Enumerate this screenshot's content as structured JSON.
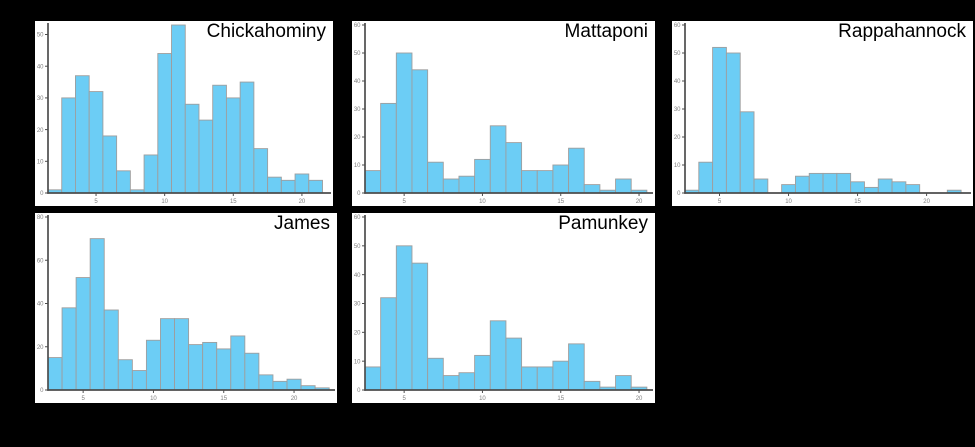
{
  "figure": {
    "background_color": "#000000",
    "panel_color": "#ffffff",
    "bar_fill": "#6CCDF5",
    "bar_stroke": "#9E9E9E",
    "axis_color": "#4D4D4D",
    "tick_label_color": "#808080",
    "title_color": "#000000"
  },
  "chart_data": [
    {
      "type": "bar",
      "subtype": "histogram",
      "title": "Chickahominy",
      "xlabel": "",
      "ylabel": "",
      "bin_width": 1,
      "x_start": 2,
      "ages": [
        2,
        3,
        4,
        5,
        6,
        7,
        8,
        9,
        10,
        11,
        12,
        13,
        14,
        15,
        16,
        17,
        18,
        19,
        20,
        21
      ],
      "values": [
        1,
        30,
        37,
        32,
        18,
        7,
        1,
        12,
        44,
        53,
        28,
        23,
        34,
        30,
        35,
        14,
        5,
        4,
        6,
        4
      ],
      "x_ticks": [
        5,
        10,
        15,
        20
      ],
      "y_ticks": [
        0,
        10,
        20,
        30,
        40,
        50
      ],
      "xlim": [
        1.5,
        21.9
      ],
      "ylim": [
        0,
        53
      ],
      "grid": false,
      "legend": null
    },
    {
      "type": "bar",
      "subtype": "histogram",
      "title": "Mattaponi",
      "xlabel": "",
      "ylabel": "",
      "bin_width": 1,
      "x_start": 3,
      "ages": [
        3,
        4,
        5,
        6,
        7,
        8,
        9,
        10,
        11,
        12,
        13,
        14,
        15,
        16,
        17,
        18,
        19,
        20
      ],
      "values": [
        8,
        32,
        50,
        44,
        11,
        5,
        6,
        12,
        24,
        18,
        8,
        8,
        10,
        16,
        3,
        1,
        5,
        1
      ],
      "x_ticks": [
        5,
        10,
        15,
        20
      ],
      "y_ticks": [
        0,
        10,
        20,
        30,
        40,
        50,
        60
      ],
      "xlim": [
        2.5,
        20.7
      ],
      "ylim": [
        0,
        60
      ],
      "grid": false,
      "legend": null
    },
    {
      "type": "bar",
      "subtype": "histogram",
      "title": "Rappahannock",
      "xlabel": "",
      "ylabel": "",
      "bin_width": 1,
      "x_start": 3,
      "ages": [
        3,
        4,
        5,
        6,
        7,
        8,
        9,
        10,
        11,
        12,
        13,
        14,
        15,
        16,
        17,
        18,
        19,
        20,
        21,
        22
      ],
      "values": [
        1,
        11,
        52,
        50,
        29,
        5,
        0,
        3,
        6,
        7,
        7,
        7,
        4,
        2,
        5,
        4,
        3,
        0,
        0,
        1
      ],
      "x_ticks": [
        5,
        10,
        15,
        20
      ],
      "y_ticks": [
        0,
        10,
        20,
        30,
        40,
        50,
        60
      ],
      "xlim": [
        2.5,
        23.0
      ],
      "ylim": [
        0,
        60
      ],
      "grid": false,
      "legend": null
    },
    {
      "type": "bar",
      "subtype": "histogram",
      "title": "James",
      "xlabel": "",
      "ylabel": "",
      "bin_width": 1,
      "x_start": 3,
      "ages": [
        3,
        4,
        5,
        6,
        7,
        8,
        9,
        10,
        11,
        12,
        13,
        14,
        15,
        16,
        17,
        18,
        19,
        20,
        21,
        22
      ],
      "values": [
        15,
        38,
        52,
        70,
        37,
        14,
        9,
        23,
        33,
        33,
        21,
        22,
        19,
        25,
        17,
        7,
        4,
        5,
        2,
        1
      ],
      "x_ticks": [
        5,
        10,
        15,
        20
      ],
      "y_ticks": [
        0,
        20,
        40,
        60,
        80
      ],
      "xlim": [
        2.5,
        22.7
      ],
      "ylim": [
        0,
        80
      ],
      "grid": false,
      "legend": null
    },
    {
      "type": "bar",
      "subtype": "histogram",
      "title": "Pamunkey",
      "xlabel": "",
      "ylabel": "",
      "bin_width": 1,
      "x_start": 3,
      "ages": [
        3,
        4,
        5,
        6,
        7,
        8,
        9,
        10,
        11,
        12,
        13,
        14,
        15,
        16,
        17,
        18,
        19,
        20
      ],
      "values": [
        8,
        32,
        50,
        44,
        11,
        5,
        6,
        12,
        24,
        18,
        8,
        8,
        10,
        16,
        3,
        1,
        5,
        1
      ],
      "x_ticks": [
        5,
        10,
        15,
        20
      ],
      "y_ticks": [
        0,
        10,
        20,
        30,
        40,
        50,
        60
      ],
      "xlim": [
        2.5,
        20.7
      ],
      "ylim": [
        0,
        60
      ],
      "grid": false,
      "legend": null
    }
  ]
}
